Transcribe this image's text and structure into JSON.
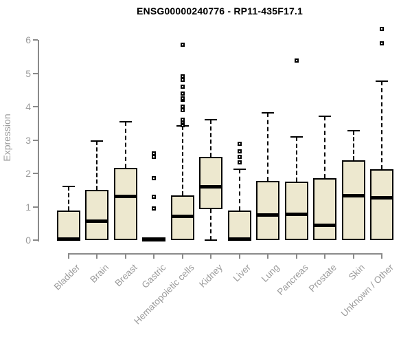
{
  "title": "ENSG00000240776 - RP11-435F17.1",
  "colors": {
    "box_fill": "#EDE8CF",
    "box_border": "#000000",
    "median": "#000000",
    "axis": "#8a8a8a",
    "axis_label": "#9b9b9b",
    "title": "#000000",
    "background": "#ffffff"
  },
  "chart_data": {
    "type": "boxplot",
    "title": "ENSG00000240776 - RP11-435F17.1",
    "xlabel": "",
    "ylabel": "Expression",
    "ylim": [
      0,
      6
    ],
    "yticks": [
      0,
      1,
      2,
      3,
      4,
      5,
      6
    ],
    "grid": false,
    "legend": "none",
    "categories": [
      "Bladder",
      "Brain",
      "Breast",
      "Gastric",
      "Hematopoietic cells",
      "Kidney",
      "Liver",
      "Lung",
      "Pancreas",
      "Prostate",
      "Skin",
      "Unknown / Other"
    ],
    "series": [
      {
        "name": "Bladder",
        "low": 0,
        "q1": 0,
        "median": 0.04,
        "q3": 0.88,
        "high": 1.6,
        "outliers": []
      },
      {
        "name": "Brain",
        "low": 0,
        "q1": 0,
        "median": 0.57,
        "q3": 1.5,
        "high": 2.97,
        "outliers": []
      },
      {
        "name": "Breast",
        "low": 0,
        "q1": 0,
        "median": 1.3,
        "q3": 2.16,
        "high": 3.55,
        "outliers": []
      },
      {
        "name": "Gastric",
        "low": 0,
        "q1": 0,
        "median": 0.03,
        "q3": 0.04,
        "high": 0.05,
        "outliers": [
          0.95,
          1.3,
          1.85,
          2.5,
          2.6
        ]
      },
      {
        "name": "Hematopoietic cells",
        "low": 0,
        "q1": 0,
        "median": 0.72,
        "q3": 1.35,
        "high": 3.42,
        "outliers": [
          3.45,
          3.5,
          3.55,
          3.6,
          3.9,
          4.0,
          4.2,
          4.25,
          4.4,
          4.6,
          4.8,
          4.9,
          5.85
        ]
      },
      {
        "name": "Kidney",
        "low": 0,
        "q1": 0.93,
        "median": 1.6,
        "q3": 2.5,
        "high": 3.6,
        "outliers": []
      },
      {
        "name": "Liver",
        "low": 0,
        "q1": 0,
        "median": 0.04,
        "q3": 0.88,
        "high": 2.12,
        "outliers": [
          2.33,
          2.5,
          2.67,
          2.88
        ]
      },
      {
        "name": "Lung",
        "low": 0,
        "q1": 0,
        "median": 0.75,
        "q3": 1.78,
        "high": 3.82,
        "outliers": []
      },
      {
        "name": "Pancreas",
        "low": 0,
        "q1": 0,
        "median": 0.78,
        "q3": 1.76,
        "high": 3.1,
        "outliers": [
          5.38
        ]
      },
      {
        "name": "Prostate",
        "low": 0,
        "q1": 0,
        "median": 0.44,
        "q3": 1.85,
        "high": 3.72,
        "outliers": []
      },
      {
        "name": "Skin",
        "low": 0,
        "q1": 0,
        "median": 1.33,
        "q3": 2.4,
        "high": 3.28,
        "outliers": []
      },
      {
        "name": "Unknown / Other",
        "low": 0,
        "q1": 0,
        "median": 1.26,
        "q3": 2.12,
        "high": 4.76,
        "outliers": [
          5.9,
          6.32
        ]
      }
    ]
  }
}
